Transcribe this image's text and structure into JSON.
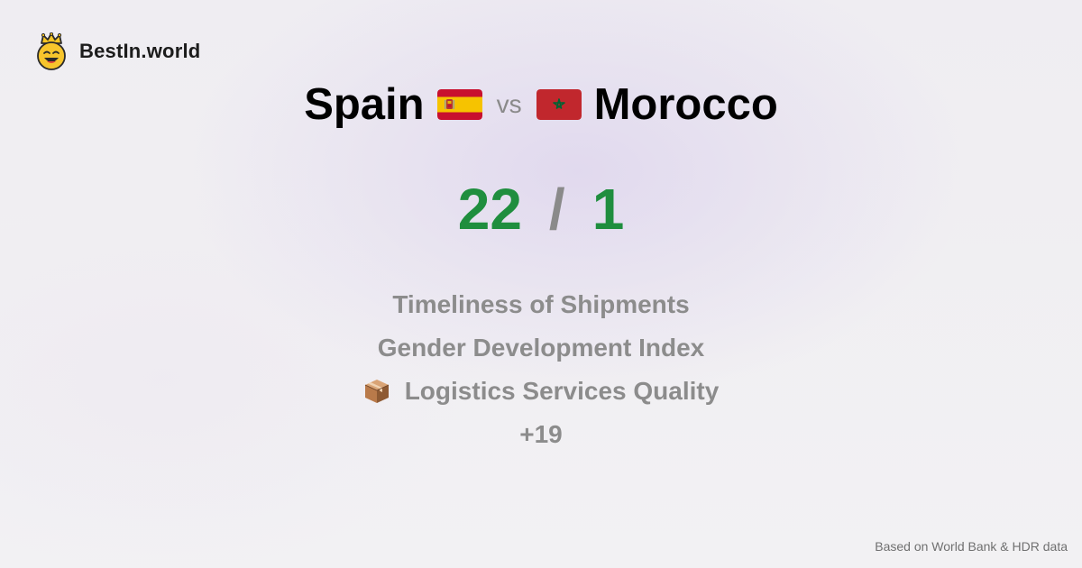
{
  "brand": {
    "name": "BestIn.world",
    "logo_icon": "crowned-smiley-icon"
  },
  "comparison": {
    "left_country": "Spain",
    "left_flag_icon": "spain-flag-icon",
    "vs_label": "vs",
    "right_country": "Morocco",
    "right_flag_icon": "morocco-flag-icon"
  },
  "score": {
    "left": "22",
    "separator": "/",
    "right": "1",
    "color": "#1f8e3e"
  },
  "metrics": [
    {
      "label": "Timeliness of Shipments"
    },
    {
      "label": "Gender Development Index"
    },
    {
      "label": "Logistics Services Quality",
      "icon": "package-icon"
    },
    {
      "label": "+19"
    }
  ],
  "footer": {
    "source": "Based on World Bank & HDR data"
  }
}
